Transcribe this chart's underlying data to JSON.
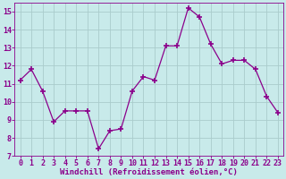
{
  "x": [
    0,
    1,
    2,
    3,
    4,
    5,
    6,
    7,
    8,
    9,
    10,
    11,
    12,
    13,
    14,
    15,
    16,
    17,
    18,
    19,
    20,
    21,
    22,
    23
  ],
  "y": [
    11.2,
    11.8,
    10.6,
    8.9,
    9.5,
    9.5,
    9.5,
    7.4,
    8.4,
    8.5,
    10.6,
    11.4,
    11.2,
    13.1,
    13.1,
    15.2,
    14.7,
    13.2,
    12.1,
    12.3,
    12.3,
    11.8,
    10.3,
    9.4
  ],
  "line_color": "#8b008b",
  "marker": "+",
  "marker_size": 4,
  "marker_lw": 1.2,
  "bg_color": "#c8eaea",
  "grid_color": "#aacccc",
  "xlabel": "Windchill (Refroidissement éolien,°C)",
  "ylim": [
    7,
    15.5
  ],
  "xlim": [
    -0.5,
    23.5
  ],
  "yticks": [
    7,
    8,
    9,
    10,
    11,
    12,
    13,
    14,
    15
  ],
  "xticks": [
    0,
    1,
    2,
    3,
    4,
    5,
    6,
    7,
    8,
    9,
    10,
    11,
    12,
    13,
    14,
    15,
    16,
    17,
    18,
    19,
    20,
    21,
    22,
    23
  ],
  "tick_color": "#8b008b",
  "label_color": "#8b008b",
  "label_fontsize": 6.5,
  "tick_fontsize": 6,
  "spine_color": "#8b008b",
  "line_width": 0.9
}
